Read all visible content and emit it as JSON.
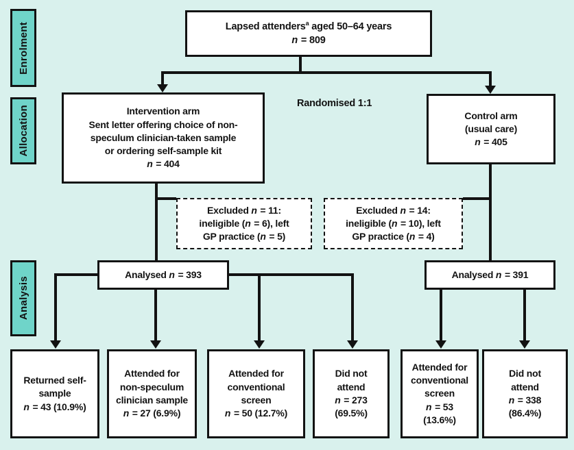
{
  "palette": {
    "background": "#d9f1ed",
    "stage_fill": "#6fd4c9",
    "ink": "#121212",
    "box_fill": "#ffffff"
  },
  "stages": {
    "enrolment": "Enrolment",
    "allocation": "Allocation",
    "analysis": "Analysis"
  },
  "annotations": {
    "randomised": "Randomised 1:1"
  },
  "boxes": {
    "population": {
      "lines": [
        "Lapsed attenders^a aged 50–64 years",
        "n = 809"
      ]
    },
    "intervention": {
      "lines": [
        "Intervention arm",
        "Sent letter offering choice of non-",
        "speculum clinician-taken sample",
        "or ordering self-sample kit",
        "n = 404"
      ]
    },
    "control": {
      "lines": [
        "Control arm",
        "(usual care)",
        "n = 405"
      ]
    },
    "excluded_intervention": {
      "lines": [
        "Excluded n = 11:",
        "ineligible (n = 6), left",
        "GP practice (n = 5)"
      ]
    },
    "excluded_control": {
      "lines": [
        "Excluded n = 14:",
        "ineligible (n = 10), left",
        "GP practice (n = 4)"
      ]
    },
    "analysed_intervention": {
      "lines": [
        "Analysed n = 393"
      ]
    },
    "analysed_control": {
      "lines": [
        "Analysed n = 391"
      ]
    },
    "returned_self_sample": {
      "lines": [
        "Returned self-",
        "sample",
        "n = 43 (10.9%)"
      ]
    },
    "attended_non_speculum": {
      "lines": [
        "Attended for",
        "non-speculum",
        "clinician sample",
        "n = 27 (6.9%)"
      ]
    },
    "attended_conventional_intervention": {
      "lines": [
        "Attended for",
        "conventional",
        "screen",
        "n = 50 (12.7%)"
      ]
    },
    "did_not_attend_intervention": {
      "lines": [
        "Did not",
        "attend",
        "n = 273",
        "(69.5%)"
      ]
    },
    "attended_conventional_control": {
      "lines": [
        "Attended for",
        "conventional",
        "screen",
        "n = 53",
        "(13.6%)"
      ]
    },
    "did_not_attend_control": {
      "lines": [
        "Did not",
        "attend",
        "n = 338",
        "(86.4%)"
      ]
    }
  }
}
